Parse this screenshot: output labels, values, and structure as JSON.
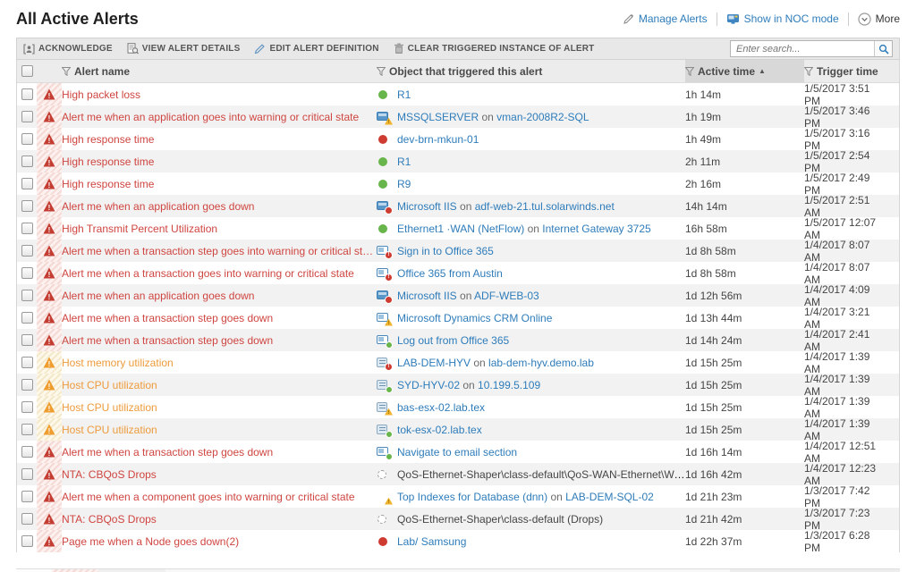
{
  "page": {
    "title": "All Active Alerts"
  },
  "header_actions": {
    "manage_alerts": "Manage Alerts",
    "noc_mode": "Show in NOC mode",
    "more": "More"
  },
  "toolbar": {
    "acknowledge": "ACKNOWLEDGE",
    "view_details": "VIEW ALERT DETAILS",
    "edit_definition": "EDIT ALERT DEFINITION",
    "clear_instance": "CLEAR TRIGGERED INSTANCE OF ALERT",
    "search_placeholder": "Enter search..."
  },
  "table": {
    "columns": {
      "name": "Alert name",
      "object": "Object that triggered this alert",
      "active": "Active time",
      "trigger": "Trigger time"
    },
    "sort_indicator": "▲",
    "rows": [
      {
        "severity": "critical",
        "name": "High packet loss",
        "icon": "node",
        "status": "up",
        "object": [
          {
            "t": "R1",
            "link": true
          }
        ],
        "active": "1h 14m",
        "trigger": "1/5/2017 3:51 PM"
      },
      {
        "severity": "critical",
        "name": "Alert me when an application goes into warning or critical state",
        "icon": "app",
        "status": "warn",
        "object": [
          {
            "t": "MSSQLSERVER",
            "link": true
          },
          {
            "t": " on ",
            "link": false
          },
          {
            "t": "vman-2008R2-SQL",
            "link": true
          }
        ],
        "active": "1h 19m",
        "trigger": "1/5/2017 3:46 PM"
      },
      {
        "severity": "critical",
        "name": "High response time",
        "icon": "node",
        "status": "down",
        "object": [
          {
            "t": "dev-brn-mkun-01",
            "link": true
          }
        ],
        "active": "1h 49m",
        "trigger": "1/5/2017 3:16 PM"
      },
      {
        "severity": "critical",
        "name": "High response time",
        "icon": "node",
        "status": "up",
        "object": [
          {
            "t": "R1",
            "link": true
          }
        ],
        "active": "2h 11m",
        "trigger": "1/5/2017 2:54 PM"
      },
      {
        "severity": "critical",
        "name": "High response time",
        "icon": "node",
        "status": "up",
        "object": [
          {
            "t": "R9",
            "link": true
          }
        ],
        "active": "2h 16m",
        "trigger": "1/5/2017 2:49 PM"
      },
      {
        "severity": "critical",
        "name": "Alert me when an application goes down",
        "icon": "app",
        "status": "down",
        "object": [
          {
            "t": "Microsoft IIS",
            "link": true
          },
          {
            "t": " on ",
            "link": false
          },
          {
            "t": "adf-web-21.tul.solarwinds.net",
            "link": true
          }
        ],
        "active": "14h 14m",
        "trigger": "1/5/2017 2:51 AM"
      },
      {
        "severity": "critical",
        "name": "High Transmit Percent Utilization",
        "icon": "node",
        "status": "up",
        "object": [
          {
            "t": "Ethernet1 ·WAN (NetFlow)",
            "link": true
          },
          {
            "t": " on ",
            "link": false
          },
          {
            "t": "Internet Gateway 3725",
            "link": true
          }
        ],
        "active": "16h 58m",
        "trigger": "1/5/2017 12:07 AM"
      },
      {
        "severity": "critical",
        "name": "Alert me when a transaction step goes into warning or critical state",
        "icon": "txn",
        "status": "crit",
        "object": [
          {
            "t": "Sign in to Office 365",
            "link": true
          }
        ],
        "active": "1d 8h 58m",
        "trigger": "1/4/2017 8:07 AM"
      },
      {
        "severity": "critical",
        "name": "Alert me when a transaction goes into warning or critical state",
        "icon": "txn",
        "status": "crit",
        "object": [
          {
            "t": "Office 365 from Austin",
            "link": true
          }
        ],
        "active": "1d 8h 58m",
        "trigger": "1/4/2017 8:07 AM"
      },
      {
        "severity": "critical",
        "name": "Alert me when an application goes down",
        "icon": "app",
        "status": "down",
        "object": [
          {
            "t": "Microsoft IIS",
            "link": true
          },
          {
            "t": " on ",
            "link": false
          },
          {
            "t": "ADF-WEB-03",
            "link": true
          }
        ],
        "active": "1d 12h 56m",
        "trigger": "1/4/2017 4:09 AM"
      },
      {
        "severity": "critical",
        "name": "Alert me when a transaction step goes down",
        "icon": "txn",
        "status": "warn",
        "object": [
          {
            "t": "Microsoft Dynamics CRM Online",
            "link": true
          }
        ],
        "active": "1d 13h 44m",
        "trigger": "1/4/2017 3:21 AM"
      },
      {
        "severity": "critical",
        "name": "Alert me when a transaction step goes down",
        "icon": "txn",
        "status": "up",
        "object": [
          {
            "t": "Log out from Office 365",
            "link": true
          }
        ],
        "active": "1d 14h 24m",
        "trigger": "1/4/2017 2:41 AM"
      },
      {
        "severity": "warning",
        "name": "Host memory utilization",
        "icon": "host",
        "status": "crit",
        "object": [
          {
            "t": "LAB-DEM-HYV",
            "link": true
          },
          {
            "t": " on ",
            "link": false
          },
          {
            "t": "lab-dem-hyv.demo.lab",
            "link": true
          }
        ],
        "active": "1d 15h 25m",
        "trigger": "1/4/2017 1:39 AM"
      },
      {
        "severity": "warning",
        "name": "Host CPU utilization",
        "icon": "host",
        "status": "up",
        "object": [
          {
            "t": "SYD-HYV-02",
            "link": true
          },
          {
            "t": " on ",
            "link": false
          },
          {
            "t": "10.199.5.109",
            "link": true
          }
        ],
        "active": "1d 15h 25m",
        "trigger": "1/4/2017 1:39 AM"
      },
      {
        "severity": "warning",
        "name": "Host CPU utilization",
        "icon": "host",
        "status": "warn",
        "object": [
          {
            "t": "bas-esx-02.lab.tex",
            "link": true
          }
        ],
        "active": "1d 15h 25m",
        "trigger": "1/4/2017 1:39 AM"
      },
      {
        "severity": "warning",
        "name": "Host CPU utilization",
        "icon": "host",
        "status": "up",
        "object": [
          {
            "t": "tok-esx-02.lab.tex",
            "link": true
          }
        ],
        "active": "1d 15h 25m",
        "trigger": "1/4/2017 1:39 AM"
      },
      {
        "severity": "critical",
        "name": "Alert me when a transaction step goes down",
        "icon": "txn",
        "status": "up",
        "object": [
          {
            "t": "Navigate to email section",
            "link": true
          }
        ],
        "active": "1d 16h 14m",
        "trigger": "1/4/2017 12:51 AM"
      },
      {
        "severity": "critical",
        "name": "NTA: CBQoS Drops",
        "icon": "unknown",
        "status": "none",
        "object": [
          {
            "t": "QoS-Ethernet-Shaper\\class-default\\QoS-WAN-Ethernet\\Web",
            "link": false
          }
        ],
        "active": "1d 16h 42m",
        "trigger": "1/4/2017 12:23 AM"
      },
      {
        "severity": "critical",
        "name": "Alert me when a component goes into warning or critical state",
        "icon": "component",
        "status": "warn",
        "object": [
          {
            "t": "Top Indexes for Database (dnn)",
            "link": true
          },
          {
            "t": " on ",
            "link": false
          },
          {
            "t": "LAB-DEM-SQL-02",
            "link": true
          }
        ],
        "active": "1d 21h 23m",
        "trigger": "1/3/2017 7:42 PM"
      },
      {
        "severity": "critical",
        "name": "NTA: CBQoS Drops",
        "icon": "unknown",
        "status": "none",
        "object": [
          {
            "t": "QoS-Ethernet-Shaper\\class-default (Drops)",
            "link": false
          }
        ],
        "active": "1d 21h 42m",
        "trigger": "1/3/2017 7:23 PM"
      },
      {
        "severity": "critical",
        "name": "Page me when a Node goes down(2)",
        "icon": "node",
        "status": "down",
        "object": [
          {
            "t": "Lab/ Samsung",
            "link": true
          }
        ],
        "active": "1d 22h 37m",
        "trigger": "1/3/2017 6:28 PM"
      }
    ]
  },
  "colors": {
    "link_blue": "#2e7cba",
    "critical_red": "#cf4540",
    "warning_orange": "#ed9b3c",
    "status_up_green": "#67b54b",
    "status_down_red": "#ce3b30",
    "toolbar_bg": "#e8e8e8",
    "row_stripe": "#f2f2f2"
  }
}
